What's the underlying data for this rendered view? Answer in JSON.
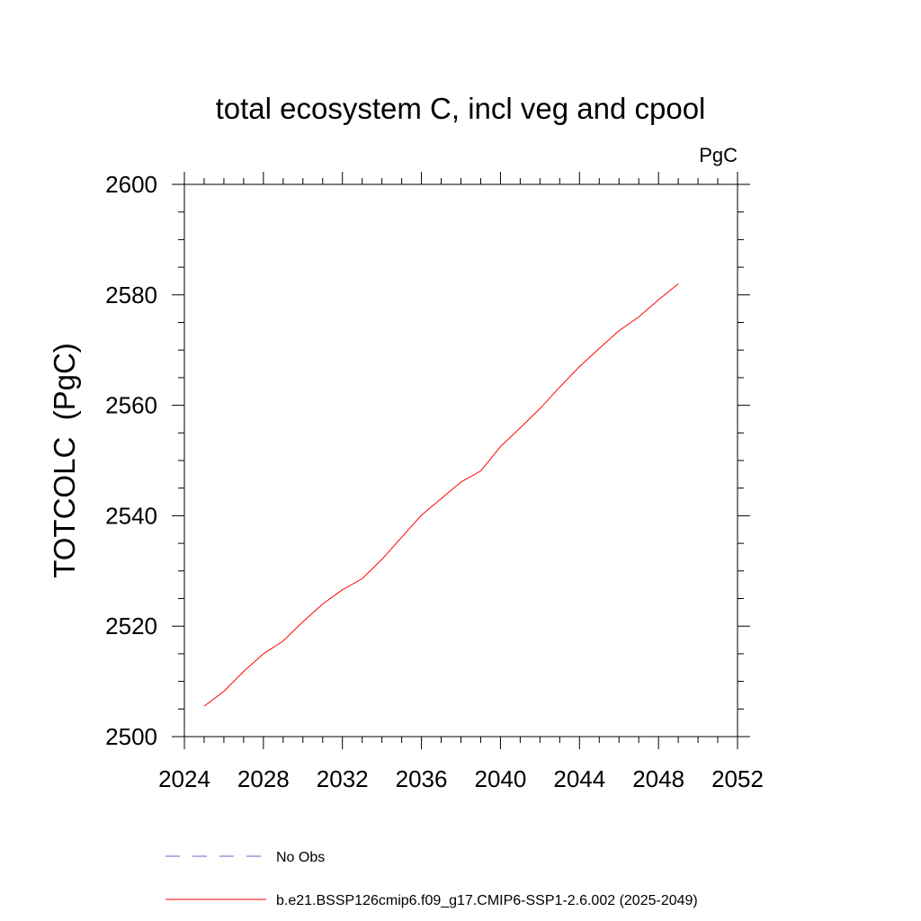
{
  "chart_data": {
    "type": "line",
    "title": "total ecosystem C, incl veg and cpool",
    "units": "PgC",
    "xlabel": "",
    "ylabel": "TOTCOLC  (PgC)",
    "xlim": [
      2024,
      2052
    ],
    "ylim": [
      2500,
      2600
    ],
    "xticks": [
      "2024",
      "2028",
      "2032",
      "2036",
      "2040",
      "2044",
      "2048",
      "2052"
    ],
    "yticks": [
      "2500",
      "2520",
      "2540",
      "2560",
      "2580",
      "2600"
    ],
    "grid": false,
    "legend_position": "bottom",
    "series": [
      {
        "name": "No Obs",
        "color": "#6666cc",
        "dash": "dashed",
        "x": [],
        "y": []
      },
      {
        "name": "b.e21.BSSP126cmip6.f09_g17.CMIP6-SSP1-2.6.002 (2025-2049)",
        "color": "#ff0000",
        "dash": "solid",
        "x": [
          2025,
          2026,
          2027,
          2028,
          2029,
          2030,
          2031,
          2032,
          2033,
          2034,
          2035,
          2036,
          2037,
          2038,
          2039,
          2040,
          2041,
          2042,
          2043,
          2044,
          2045,
          2046,
          2047,
          2048,
          2049
        ],
        "y": [
          2505.5,
          2508.2,
          2511.8,
          2515.0,
          2517.3,
          2520.8,
          2524.0,
          2526.6,
          2528.6,
          2532.1,
          2536.1,
          2540.1,
          2543.1,
          2546.1,
          2548.1,
          2552.5,
          2555.9,
          2559.4,
          2563.3,
          2567.0,
          2570.3,
          2573.5,
          2576.0,
          2579.1,
          2582.0
        ]
      }
    ]
  }
}
